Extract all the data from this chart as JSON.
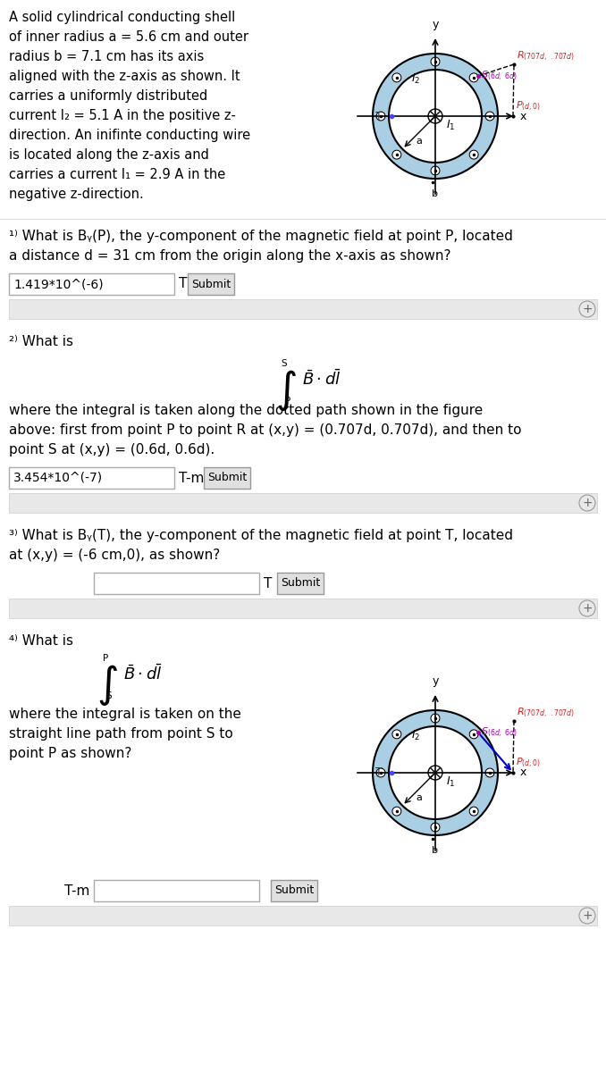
{
  "bg_color": "#ffffff",
  "shell_color": "#aacfe4",
  "problem_text": [
    "A solid cylindrical conducting shell",
    "of inner radius a = 5.6 cm and outer",
    "radius b = 7.1 cm has its axis",
    "aligned with the z-axis as shown. It",
    "carries a uniformly distributed",
    "current I₂ = 5.1 A in the positive z-",
    "direction. An inifinte conducting wire",
    "is located along the z-axis and",
    "carries a current I₁ = 2.9 A in the",
    "negative z-direction."
  ],
  "q1_line1": "¹⁾ What is Bᵧ(P), the y-component of the magnetic field at point P, located",
  "q1_line2": "a distance d = 31 cm from the origin along the x-axis as shown?",
  "q1_answer": "1.419*10^(-6)",
  "q2_line1": "²⁾ What is",
  "q2_line2": "where the integral is taken along the dotted path shown in the figure",
  "q2_line3": "above: first from point P to point R at (x,y) = (0.707d, 0.707d), and then to",
  "q2_line4": "point S at (x,y) = (0.6d, 0.6d).",
  "q2_answer": "3.454*10^(-7)",
  "q3_line1": "³⁾ What is Bᵧ(T), the y-component of the magnetic field at point T, located",
  "q3_line2": "at (x,y) = (-6 cm,0), as shown?",
  "q4_line1": "⁴⁾ What is",
  "q4_line2": "where the integral is taken on the",
  "q4_line3": "straight line path from point S to",
  "q4_line4": "point P as shown?"
}
